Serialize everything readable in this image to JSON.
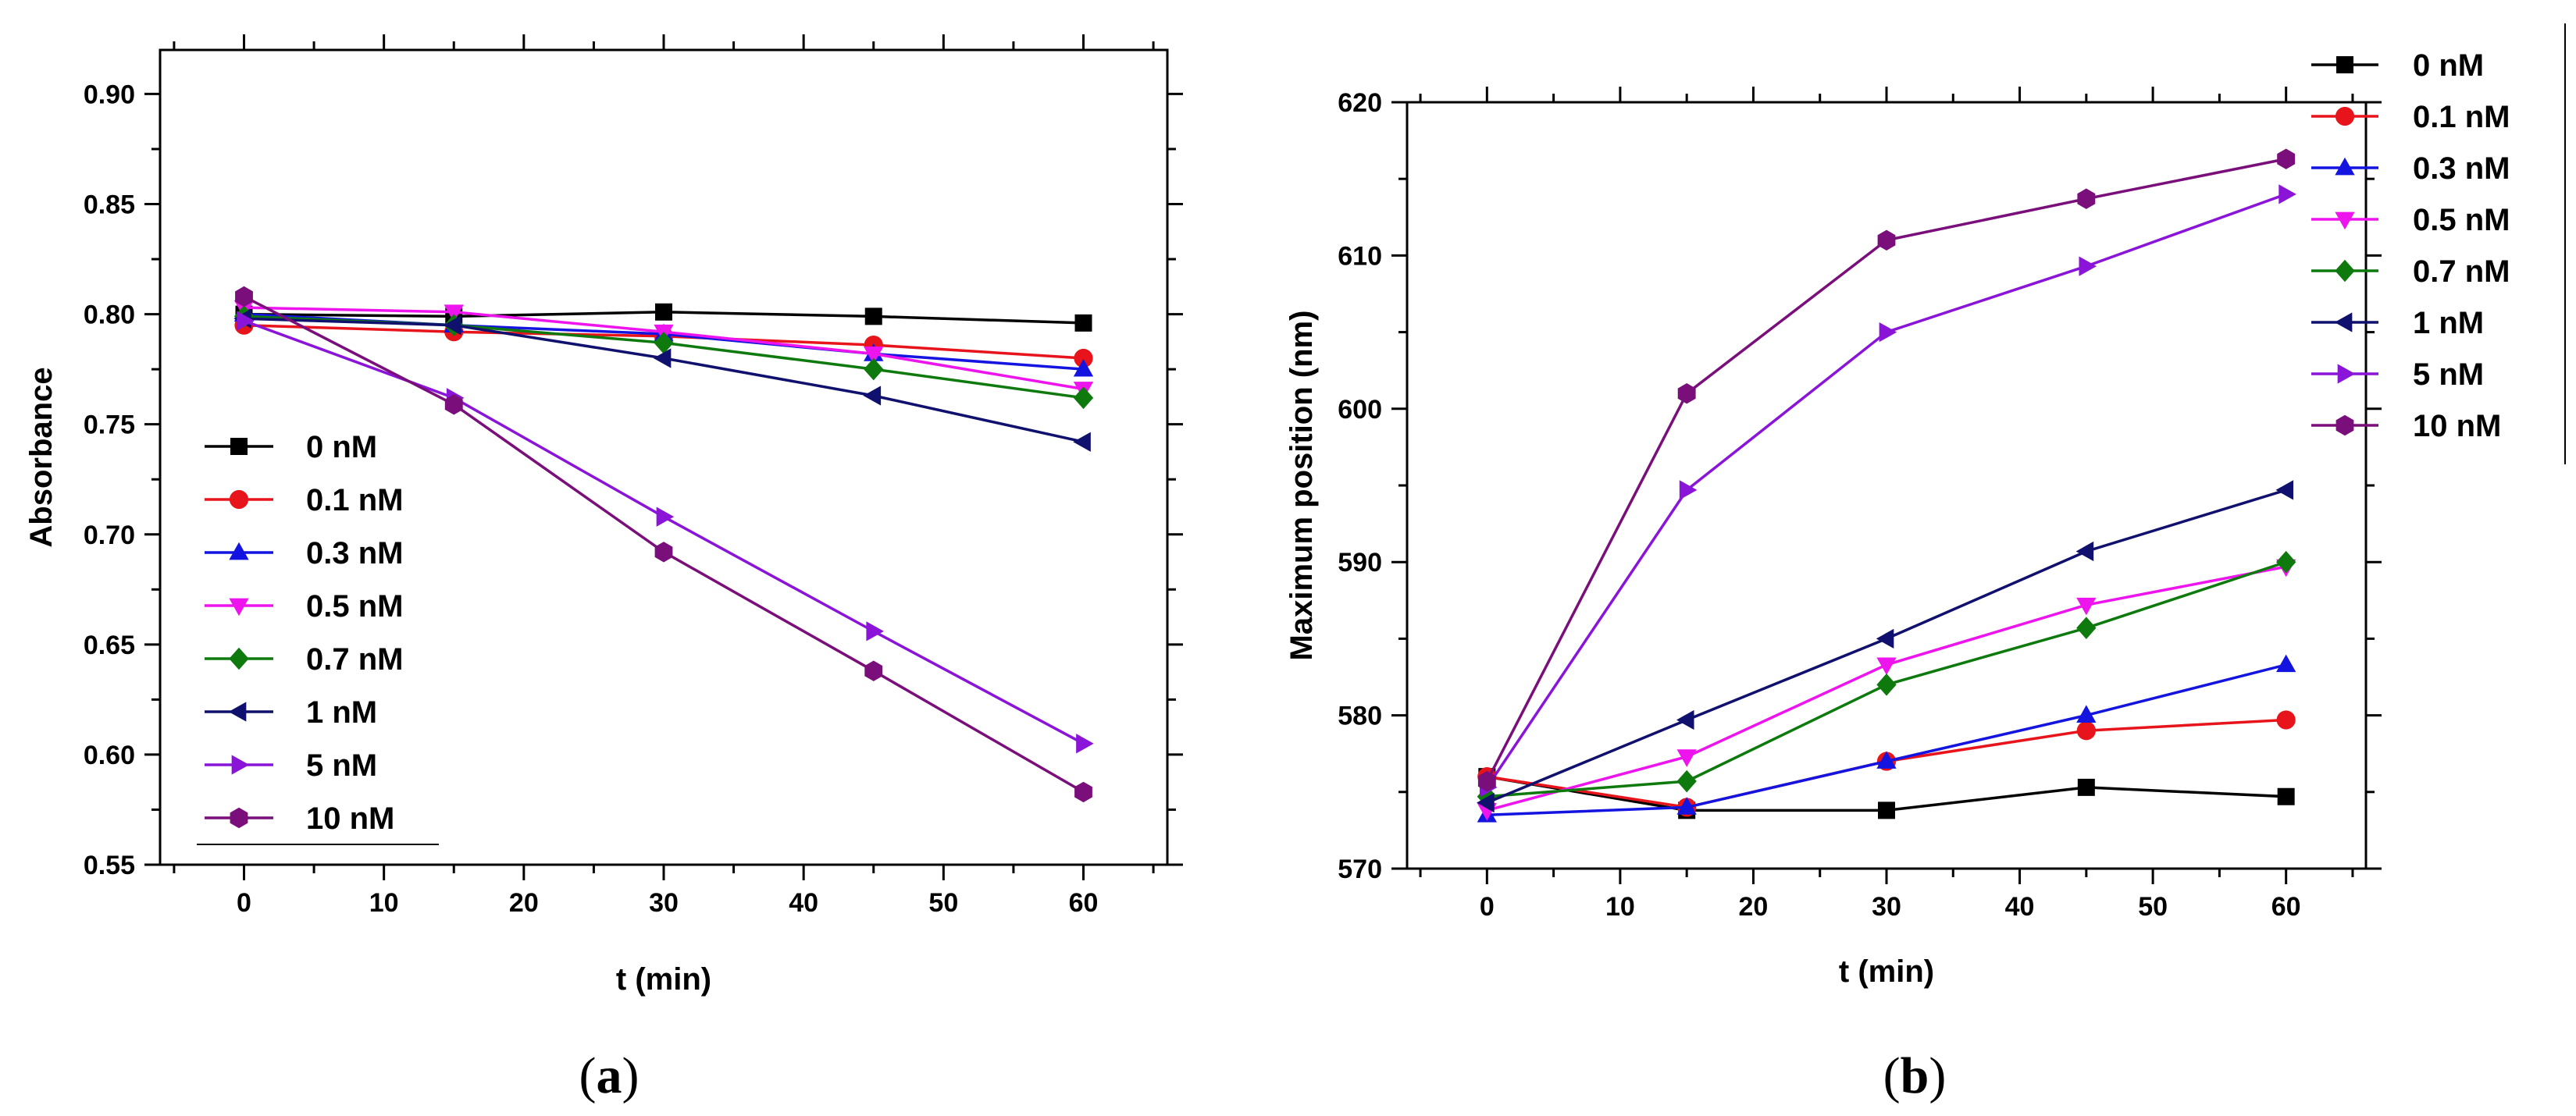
{
  "chart_data": [
    {
      "type": "line",
      "panel_label": "a",
      "title": "",
      "xlabel": "t (min)",
      "ylabel": "Absorbance",
      "xlim": [
        -6,
        66
      ],
      "ylim": [
        0.55,
        0.92
      ],
      "xticks": [
        0,
        10,
        20,
        30,
        40,
        50,
        60
      ],
      "yticks": [
        0.55,
        0.6,
        0.65,
        0.7,
        0.75,
        0.8,
        0.85,
        0.9
      ],
      "ytick_labels": [
        "0.55",
        "0.60",
        "0.65",
        "0.70",
        "0.75",
        "0.80",
        "0.85",
        "0.90"
      ],
      "legend_position": "bottom-left",
      "x": [
        0,
        15,
        30,
        45,
        60
      ],
      "series": [
        {
          "name": "0 nM",
          "color": "#000000",
          "marker": "square",
          "values": [
            0.8,
            0.799,
            0.801,
            0.799,
            0.796
          ]
        },
        {
          "name": "0.1 nM",
          "color": "#e8141b",
          "marker": "circle",
          "values": [
            0.795,
            0.792,
            0.79,
            0.786,
            0.78
          ]
        },
        {
          "name": "0.3 nM",
          "color": "#1414e0",
          "marker": "triangle-up",
          "values": [
            0.8,
            0.795,
            0.791,
            0.782,
            0.775
          ]
        },
        {
          "name": "0.5 nM",
          "color": "#ee14ee",
          "marker": "triangle-down",
          "values": [
            0.803,
            0.801,
            0.792,
            0.782,
            0.766
          ]
        },
        {
          "name": "0.7 nM",
          "color": "#0e7a0e",
          "marker": "diamond",
          "values": [
            0.799,
            0.795,
            0.787,
            0.775,
            0.762
          ]
        },
        {
          "name": "1 nM",
          "color": "#10106e",
          "marker": "triangle-left",
          "values": [
            0.798,
            0.795,
            0.78,
            0.763,
            0.742
          ]
        },
        {
          "name": "5 nM",
          "color": "#8a14d8",
          "marker": "triangle-right",
          "values": [
            0.797,
            0.762,
            0.708,
            0.656,
            0.605
          ]
        },
        {
          "name": "10 nM",
          "color": "#7a0e7a",
          "marker": "hexagon",
          "values": [
            0.808,
            0.759,
            0.692,
            0.638,
            0.583
          ]
        }
      ]
    },
    {
      "type": "line",
      "panel_label": "b",
      "title": "",
      "xlabel": "t (min)",
      "ylabel": "Maximum position (nm)",
      "xlim": [
        -6,
        66
      ],
      "ylim": [
        570,
        620
      ],
      "xticks": [
        0,
        10,
        20,
        30,
        40,
        50,
        60
      ],
      "yticks": [
        570,
        580,
        590,
        600,
        610,
        620
      ],
      "ytick_labels": [
        "570",
        "580",
        "590",
        "600",
        "610",
        "620"
      ],
      "legend_position": "top-right",
      "x": [
        0,
        15,
        30,
        45,
        60
      ],
      "series": [
        {
          "name": "0 nM",
          "color": "#000000",
          "marker": "square",
          "values": [
            576.0,
            573.8,
            573.8,
            575.3,
            574.7
          ]
        },
        {
          "name": "0.1 nM",
          "color": "#e8141b",
          "marker": "circle",
          "values": [
            576.0,
            574.0,
            577.0,
            579.0,
            579.7
          ]
        },
        {
          "name": "0.3 nM",
          "color": "#1414e0",
          "marker": "triangle-up",
          "values": [
            573.5,
            574.0,
            577.0,
            580.0,
            583.3
          ]
        },
        {
          "name": "0.5 nM",
          "color": "#ee14ee",
          "marker": "triangle-down",
          "values": [
            573.8,
            577.3,
            583.3,
            587.2,
            589.7
          ]
        },
        {
          "name": "0.7 nM",
          "color": "#0e7a0e",
          "marker": "diamond",
          "values": [
            574.7,
            575.7,
            582.0,
            585.7,
            590.0
          ]
        },
        {
          "name": "1 nM",
          "color": "#10106e",
          "marker": "triangle-left",
          "values": [
            574.3,
            579.7,
            585.0,
            590.7,
            594.7
          ]
        },
        {
          "name": "5 nM",
          "color": "#8a14d8",
          "marker": "triangle-right",
          "values": [
            575.3,
            594.7,
            605.0,
            609.3,
            614.0
          ]
        },
        {
          "name": "10 nM",
          "color": "#7a0e7a",
          "marker": "hexagon",
          "values": [
            575.7,
            601.0,
            611.0,
            613.7,
            616.3
          ]
        }
      ]
    }
  ]
}
